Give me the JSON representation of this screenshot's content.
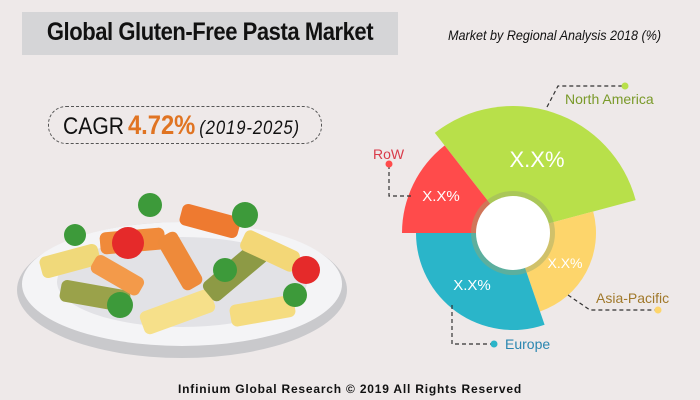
{
  "header": {
    "title": "Global Gluten-Free Pasta Market",
    "subtitle": "Market by Regional Analysis 2018 (%)"
  },
  "cagr": {
    "label": "CAGR",
    "value": "4.72%",
    "period": "(2019-2025)"
  },
  "footer": "Infinium Global Research © 2019 All Rights Reserved",
  "chart_data": {
    "type": "pie",
    "title": "Market by Regional Analysis 2018 (%)",
    "categories": [
      "North America",
      "Asia-Pacific",
      "Europe",
      "RoW"
    ],
    "value_labels": [
      "X.X%",
      "X.X%",
      "X.X%",
      "X.X%"
    ],
    "colors": [
      "#b8e04a",
      "#fdd56b",
      "#2ab5c9",
      "#ff4b4b"
    ],
    "label_colors": [
      "#7a9a2a",
      "#a0782a",
      "#2a86b0",
      "#d93b4a"
    ]
  }
}
